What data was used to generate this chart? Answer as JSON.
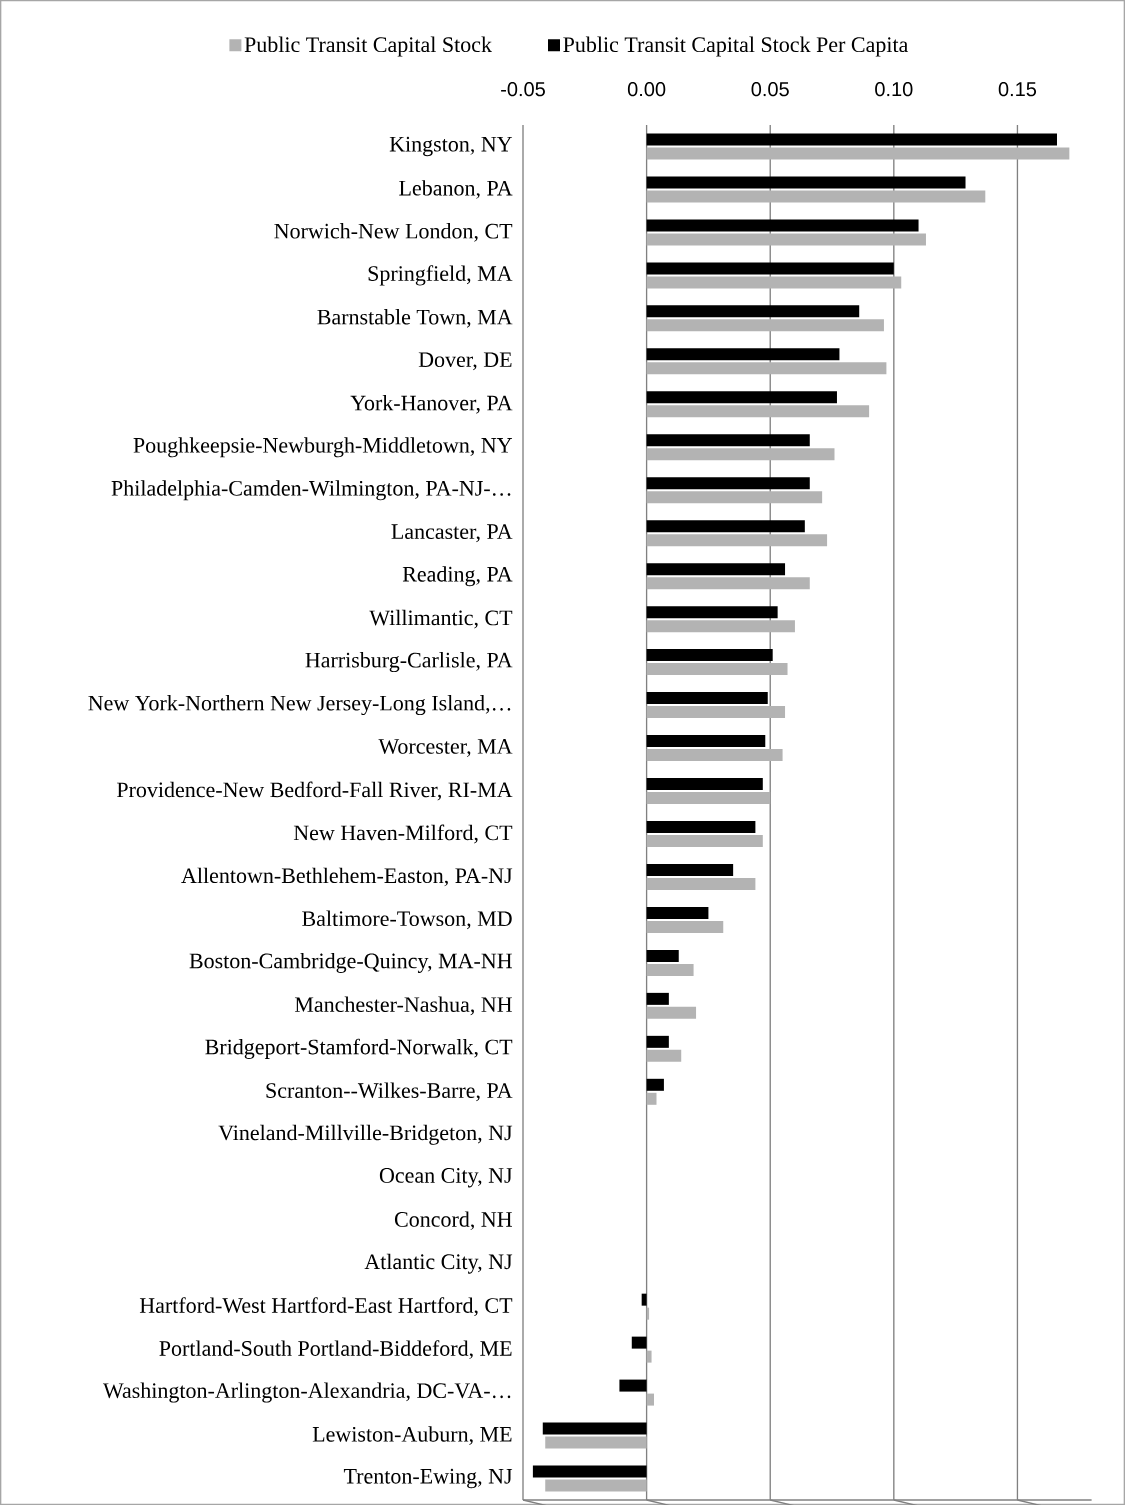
{
  "chart_data": {
    "type": "bar",
    "orientation": "horizontal",
    "categories": [
      "Kingston, NY",
      "Lebanon, PA",
      "Norwich-New London, CT",
      "Springfield, MA",
      "Barnstable Town, MA",
      "Dover, DE",
      "York-Hanover, PA",
      "Poughkeepsie-Newburgh-Middletown, NY",
      "Philadelphia-Camden-Wilmington, PA-NJ-…",
      "Lancaster, PA",
      "Reading, PA",
      "Willimantic, CT",
      "Harrisburg-Carlisle, PA",
      "New York-Northern New Jersey-Long Island,…",
      "Worcester, MA",
      "Providence-New Bedford-Fall River, RI-MA",
      "New Haven-Milford, CT",
      "Allentown-Bethlehem-Easton, PA-NJ",
      "Baltimore-Towson, MD",
      "Boston-Cambridge-Quincy, MA-NH",
      "Manchester-Nashua, NH",
      "Bridgeport-Stamford-Norwalk, CT",
      "Scranton--Wilkes-Barre, PA",
      "Vineland-Millville-Bridgeton, NJ",
      "Ocean City, NJ",
      "Concord, NH",
      "Atlantic City, NJ",
      "Hartford-West Hartford-East Hartford, CT",
      "Portland-South Portland-Biddeford, ME",
      "Washington-Arlington-Alexandria, DC-VA-…",
      "Lewiston-Auburn, ME",
      "Trenton-Ewing, NJ"
    ],
    "series": [
      {
        "name": "Public Transit Capital Stock",
        "color": "#b3b3b3",
        "values": [
          0.171,
          0.137,
          0.113,
          0.103,
          0.096,
          0.097,
          0.09,
          0.076,
          0.071,
          0.073,
          0.066,
          0.06,
          0.057,
          0.056,
          0.055,
          0.05,
          0.047,
          0.044,
          0.031,
          0.019,
          0.02,
          0.014,
          0.004,
          0,
          0,
          0,
          0,
          0.001,
          0.002,
          0.003,
          -0.041,
          -0.041
        ]
      },
      {
        "name": "Public Transit Capital Stock Per Capita",
        "color": "#000000",
        "values": [
          0.166,
          0.129,
          0.11,
          0.1,
          0.086,
          0.078,
          0.077,
          0.066,
          0.066,
          0.064,
          0.056,
          0.053,
          0.051,
          0.049,
          0.048,
          0.047,
          0.044,
          0.035,
          0.025,
          0.013,
          0.009,
          0.009,
          0.007,
          0,
          0,
          0,
          0,
          -0.002,
          -0.006,
          -0.011,
          -0.042,
          -0.046
        ]
      }
    ],
    "xlim": [
      -0.05,
      0.18
    ],
    "xticks": [
      {
        "value": -0.05,
        "label": "-0.05"
      },
      {
        "value": 0,
        "label": "0.00"
      },
      {
        "value": 0.05,
        "label": "0.05"
      },
      {
        "value": 0.1,
        "label": "0.10"
      },
      {
        "value": 0.15,
        "label": "0.15"
      }
    ],
    "grid": "x",
    "legend": "top"
  }
}
